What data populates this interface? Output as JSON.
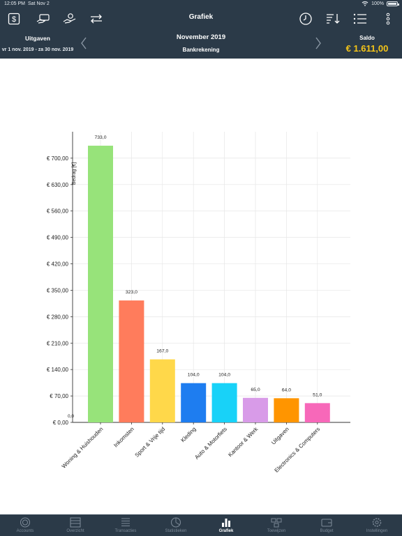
{
  "status": {
    "time": "12:05 PM",
    "date": "Sat Nov 2",
    "battery": "100%"
  },
  "header": {
    "title": "Grafiek",
    "left_label": "Uitgaven",
    "date_range": "vr 1 nov. 2019 - za 30 nov. 2019",
    "month": "November 2019",
    "account": "Bankrekening",
    "saldo_label": "Saldo",
    "saldo_value": "€ 1.611,00",
    "saldo_color": "#f5c518",
    "toolbar_icons": [
      "dollar-square-icon",
      "card-hand-icon",
      "hand-coins-icon",
      "transfer-arrows-icon",
      "clock-icon",
      "sort-icon",
      "list-icon",
      "more-vertical-icon"
    ]
  },
  "chart_data": {
    "type": "bar",
    "ylabel": "Bedrag [€]",
    "ylim": [
      0,
      770
    ],
    "yticks": [
      "€ 0,00",
      "€ 70,00",
      "€ 140,00",
      "€ 210,00",
      "€ 280,00",
      "€ 350,00",
      "€ 420,00",
      "€ 490,00",
      "€ 560,00",
      "€ 630,00",
      "€ 700,00"
    ],
    "ytick_values": [
      0,
      70,
      140,
      210,
      280,
      350,
      420,
      490,
      560,
      630,
      700
    ],
    "zero_label": "0,0",
    "grid": true,
    "categories": [
      "Woning & Huishouden",
      "Inkomsten",
      "Sport & Vrije tijd",
      "Kleding",
      "Auto & Motorfiets",
      "Kantoor & Werk",
      "Uitgaven",
      "Electronics & Computers"
    ],
    "values": [
      733,
      323,
      167,
      104,
      104,
      65,
      64,
      51
    ],
    "value_labels": [
      "733,0",
      "323,0",
      "167,0",
      "104,0",
      "104,0",
      "65,0",
      "64,0",
      "51,0"
    ],
    "colors": [
      "#97e37a",
      "#ff7c5c",
      "#ffd84a",
      "#1e7df0",
      "#18d2f8",
      "#d89be8",
      "#ff9500",
      "#f768b9"
    ]
  },
  "tabs": [
    {
      "label": "Accounts",
      "icon": "accounts-coin-icon"
    },
    {
      "label": "Overzicht",
      "icon": "overview-icon"
    },
    {
      "label": "Transacties",
      "icon": "transactions-list-icon"
    },
    {
      "label": "Statistieken",
      "icon": "statistics-pie-icon"
    },
    {
      "label": "Grafiek",
      "icon": "bar-chart-icon"
    },
    {
      "label": "Toewijzen",
      "icon": "assign-icon"
    },
    {
      "label": "Budget",
      "icon": "wallet-icon"
    },
    {
      "label": "Instellingen",
      "icon": "settings-gear-icon"
    }
  ],
  "active_tab": 4
}
